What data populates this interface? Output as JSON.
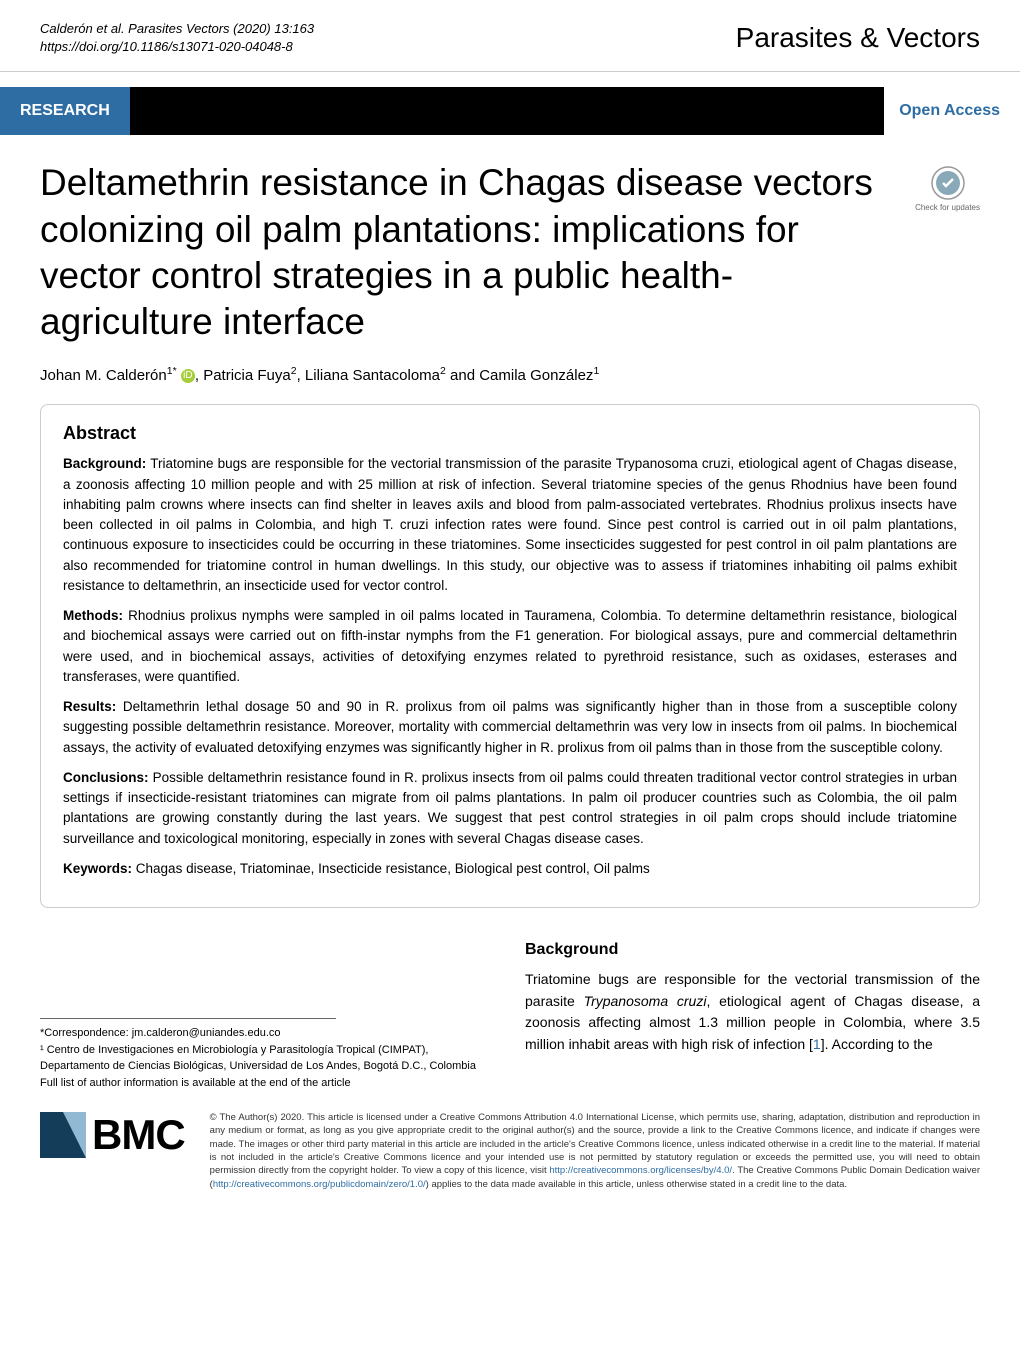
{
  "header": {
    "citation_line1": "Calderón et al. Parasites Vectors     (2020) 13:163",
    "citation_line2": "https://doi.org/10.1186/s13071-020-04048-8",
    "journal": "Parasites & Vectors"
  },
  "labels": {
    "research": "RESEARCH",
    "open_access": "Open Access",
    "check_updates": "Check for updates"
  },
  "article": {
    "title": "Deltamethrin resistance in Chagas disease vectors colonizing oil palm plantations: implications for vector control strategies in a public health-agriculture interface",
    "authors_html": "Johan M. Calderón<sup>1*</sup> <span class='orcid'>iD</span>, Patricia Fuya<sup>2</sup>, Liliana Santacoloma<sup>2</sup> and Camila González<sup>1</sup>"
  },
  "abstract": {
    "heading": "Abstract",
    "background_label": "Background:",
    "background_text": "  Triatomine bugs are responsible for the vectorial transmission of the parasite Trypanosoma cruzi, etiological agent of Chagas disease, a zoonosis affecting 10 million people and with 25 million at risk of infection. Several triatomine species of the genus Rhodnius have been found inhabiting palm crowns where insects can find shelter in leaves axils and blood from palm-associated vertebrates. Rhodnius prolixus insects have been collected in oil palms in Colombia, and high T. cruzi infection rates were found. Since pest control is carried out in oil palm plantations, continuous exposure to insecticides could be occurring in these triatomines. Some insecticides suggested for pest control in oil palm plantations are also recommended for triatomine control in human dwellings. In this study, our objective was to assess if triatomines inhabiting oil palms exhibit resistance to deltamethrin, an insecticide used for vector control.",
    "methods_label": "Methods:",
    "methods_text": "  Rhodnius prolixus nymphs were sampled in oil palms located in Tauramena, Colombia. To determine deltamethrin resistance, biological and biochemical assays were carried out on fifth-instar nymphs from the F1 generation. For biological assays, pure and commercial deltamethrin were used, and in biochemical assays, activities of detoxifying enzymes related to pyrethroid resistance, such as oxidases, esterases and transferases, were quantified.",
    "results_label": "Results:",
    "results_text": "  Deltamethrin lethal dosage 50 and 90 in R. prolixus from oil palms was significantly higher than in those from a susceptible colony suggesting possible deltamethrin resistance. Moreover, mortality with commercial deltamethrin was very low in insects from oil palms. In biochemical assays, the activity of evaluated detoxifying enzymes was significantly higher in R. prolixus from oil palms than in those from the susceptible colony.",
    "conclusions_label": "Conclusions:",
    "conclusions_text": "  Possible deltamethrin resistance found in R. prolixus insects from oil palms could threaten traditional vector control strategies in urban settings if insecticide-resistant triatomines can migrate from oil palms plantations. In palm oil producer countries such as Colombia, the oil palm plantations are growing constantly during the last years. We suggest that pest control strategies in oil palm crops should include triatomine surveillance and toxicological monitoring, especially in zones with several Chagas disease cases.",
    "keywords_label": "Keywords:",
    "keywords_text": "  Chagas disease, Triatominae, Insecticide resistance, Biological pest control, Oil palms"
  },
  "correspondence": {
    "email_label": "*Correspondence:",
    "email": "jm.calderon@uniandes.edu.co",
    "affiliation": "¹ Centro de Investigaciones en Microbiología y Parasitología Tropical (CIMPAT), Departamento de Ciencias Biológicas, Universidad de Los Andes, Bogotá D.C., Colombia",
    "note": "Full list of author information is available at the end of the article"
  },
  "background_section": {
    "heading": "Background",
    "text_part1": "Triatomine bugs are responsible for the vectorial transmission of the parasite ",
    "text_italic1": "Trypanosoma cruzi",
    "text_part2": ", etiological agent of Chagas disease, a zoonosis affecting almost 1.3 million people in Colombia, where 3.5 million inhabit areas with high risk of infection [",
    "ref1": "1",
    "text_part3": "]. According to the"
  },
  "footer": {
    "bmc": "BMC",
    "license": "© The Author(s) 2020. This article is licensed under a Creative Commons Attribution 4.0 International License, which permits use, sharing, adaptation, distribution and reproduction in any medium or format, as long as you give appropriate credit to the original author(s) and the source, provide a link to the Creative Commons licence, and indicate if changes were made. The images or other third party material in this article are included in the article's Creative Commons licence, unless indicated otherwise in a credit line to the material. If material is not included in the article's Creative Commons licence and your intended use is not permitted by statutory regulation or exceeds the permitted use, you will need to obtain permission directly from the copyright holder. To view a copy of this licence, visit ",
    "license_url1": "http://creativecommons.org/licenses/by/4.0/",
    "license_mid": ". The Creative Commons Public Domain Dedication waiver (",
    "license_url2": "http://creativecommons.org/publicdomain/zero/1.0/",
    "license_end": ") applies to the data made available in this article, unless otherwise stated in a credit line to the data."
  },
  "colors": {
    "blue": "#2e6da4",
    "orcid_green": "#a6ce39",
    "bmc_dark": "#133d59"
  }
}
